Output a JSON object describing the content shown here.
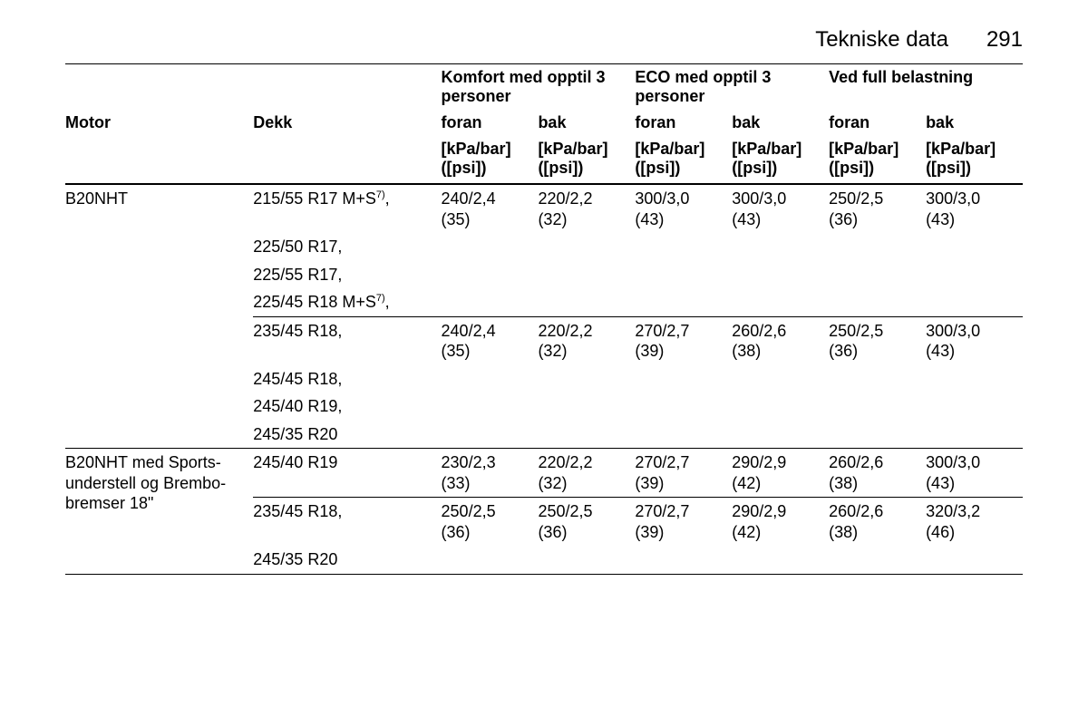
{
  "header": {
    "title": "Tekniske data",
    "page": "291"
  },
  "columns": {
    "motor": "Motor",
    "dekk": "Dekk",
    "groups": [
      {
        "title": "Komfort med opptil 3 personer",
        "front": "foran",
        "rear": "bak"
      },
      {
        "title": "ECO med opptil 3 personer",
        "front": "foran",
        "rear": "bak"
      },
      {
        "title": "Ved full belastning",
        "front": "foran",
        "rear": "bak"
      }
    ],
    "unit_line1": "[kPa/bar]",
    "unit_line2": "([psi])"
  },
  "footnote_sup": "7)",
  "rows": [
    {
      "motor": "B20NHT",
      "blocks": [
        {
          "tires": [
            "215/55 R17 M+S{7}"
          ],
          "vals": {
            "k_f": "240/2,4",
            "k_f_psi": "(35)",
            "k_b": "220/2,2",
            "k_b_psi": "(32)",
            "e_f": "300/3,0",
            "e_f_psi": "(43)",
            "e_b": "300/3,0",
            "e_b_psi": "(43)",
            "f_f": "250/2,5",
            "f_f_psi": "(36)",
            "f_b": "300/3,0",
            "f_b_psi": "(43)"
          }
        },
        {
          "tires": [
            "225/50 R17,"
          ],
          "vals": null
        },
        {
          "tires": [
            "225/55 R17,"
          ],
          "vals": null
        },
        {
          "tires": [
            "225/45 R18 M+S{7}"
          ],
          "vals": null,
          "sep": true
        },
        {
          "tires": [
            "235/45 R18,"
          ],
          "vals": {
            "k_f": "240/2,4",
            "k_f_psi": "(35)",
            "k_b": "220/2,2",
            "k_b_psi": "(32)",
            "e_f": "270/2,7",
            "e_f_psi": "(39)",
            "e_b": "260/2,6",
            "e_b_psi": "(38)",
            "f_f": "250/2,5",
            "f_f_psi": "(36)",
            "f_b": "300/3,0",
            "f_b_psi": "(43)"
          }
        },
        {
          "tires": [
            "245/45 R18,"
          ],
          "vals": null
        },
        {
          "tires": [
            "245/40 R19,"
          ],
          "vals": null
        },
        {
          "tires": [
            "245/35 R20"
          ],
          "vals": null,
          "sep": true
        }
      ]
    },
    {
      "motor": "B20NHT med Sports-understell og Brembo-bremser 18\"",
      "blocks": [
        {
          "tires": [
            "245/40 R19"
          ],
          "vals": {
            "k_f": "230/2,3",
            "k_f_psi": "(33)",
            "k_b": "220/2,2",
            "k_b_psi": "(32)",
            "e_f": "270/2,7",
            "e_f_psi": "(39)",
            "e_b": "290/2,9",
            "e_b_psi": "(42)",
            "f_f": "260/2,6",
            "f_f_psi": "(38)",
            "f_b": "300/3,0",
            "f_b_psi": "(43)"
          },
          "sep": true
        },
        {
          "tires": [
            "235/45 R18,"
          ],
          "vals": {
            "k_f": "250/2,5",
            "k_f_psi": "(36)",
            "k_b": "250/2,5",
            "k_b_psi": "(36)",
            "e_f": "270/2,7",
            "e_f_psi": "(39)",
            "e_b": "290/2,9",
            "e_b_psi": "(42)",
            "f_f": "260/2,6",
            "f_f_psi": "(38)",
            "f_b": "320/3,2",
            "f_b_psi": "(46)"
          }
        },
        {
          "tires": [
            "245/35 R20"
          ],
          "vals": null,
          "sep": true
        }
      ]
    }
  ]
}
